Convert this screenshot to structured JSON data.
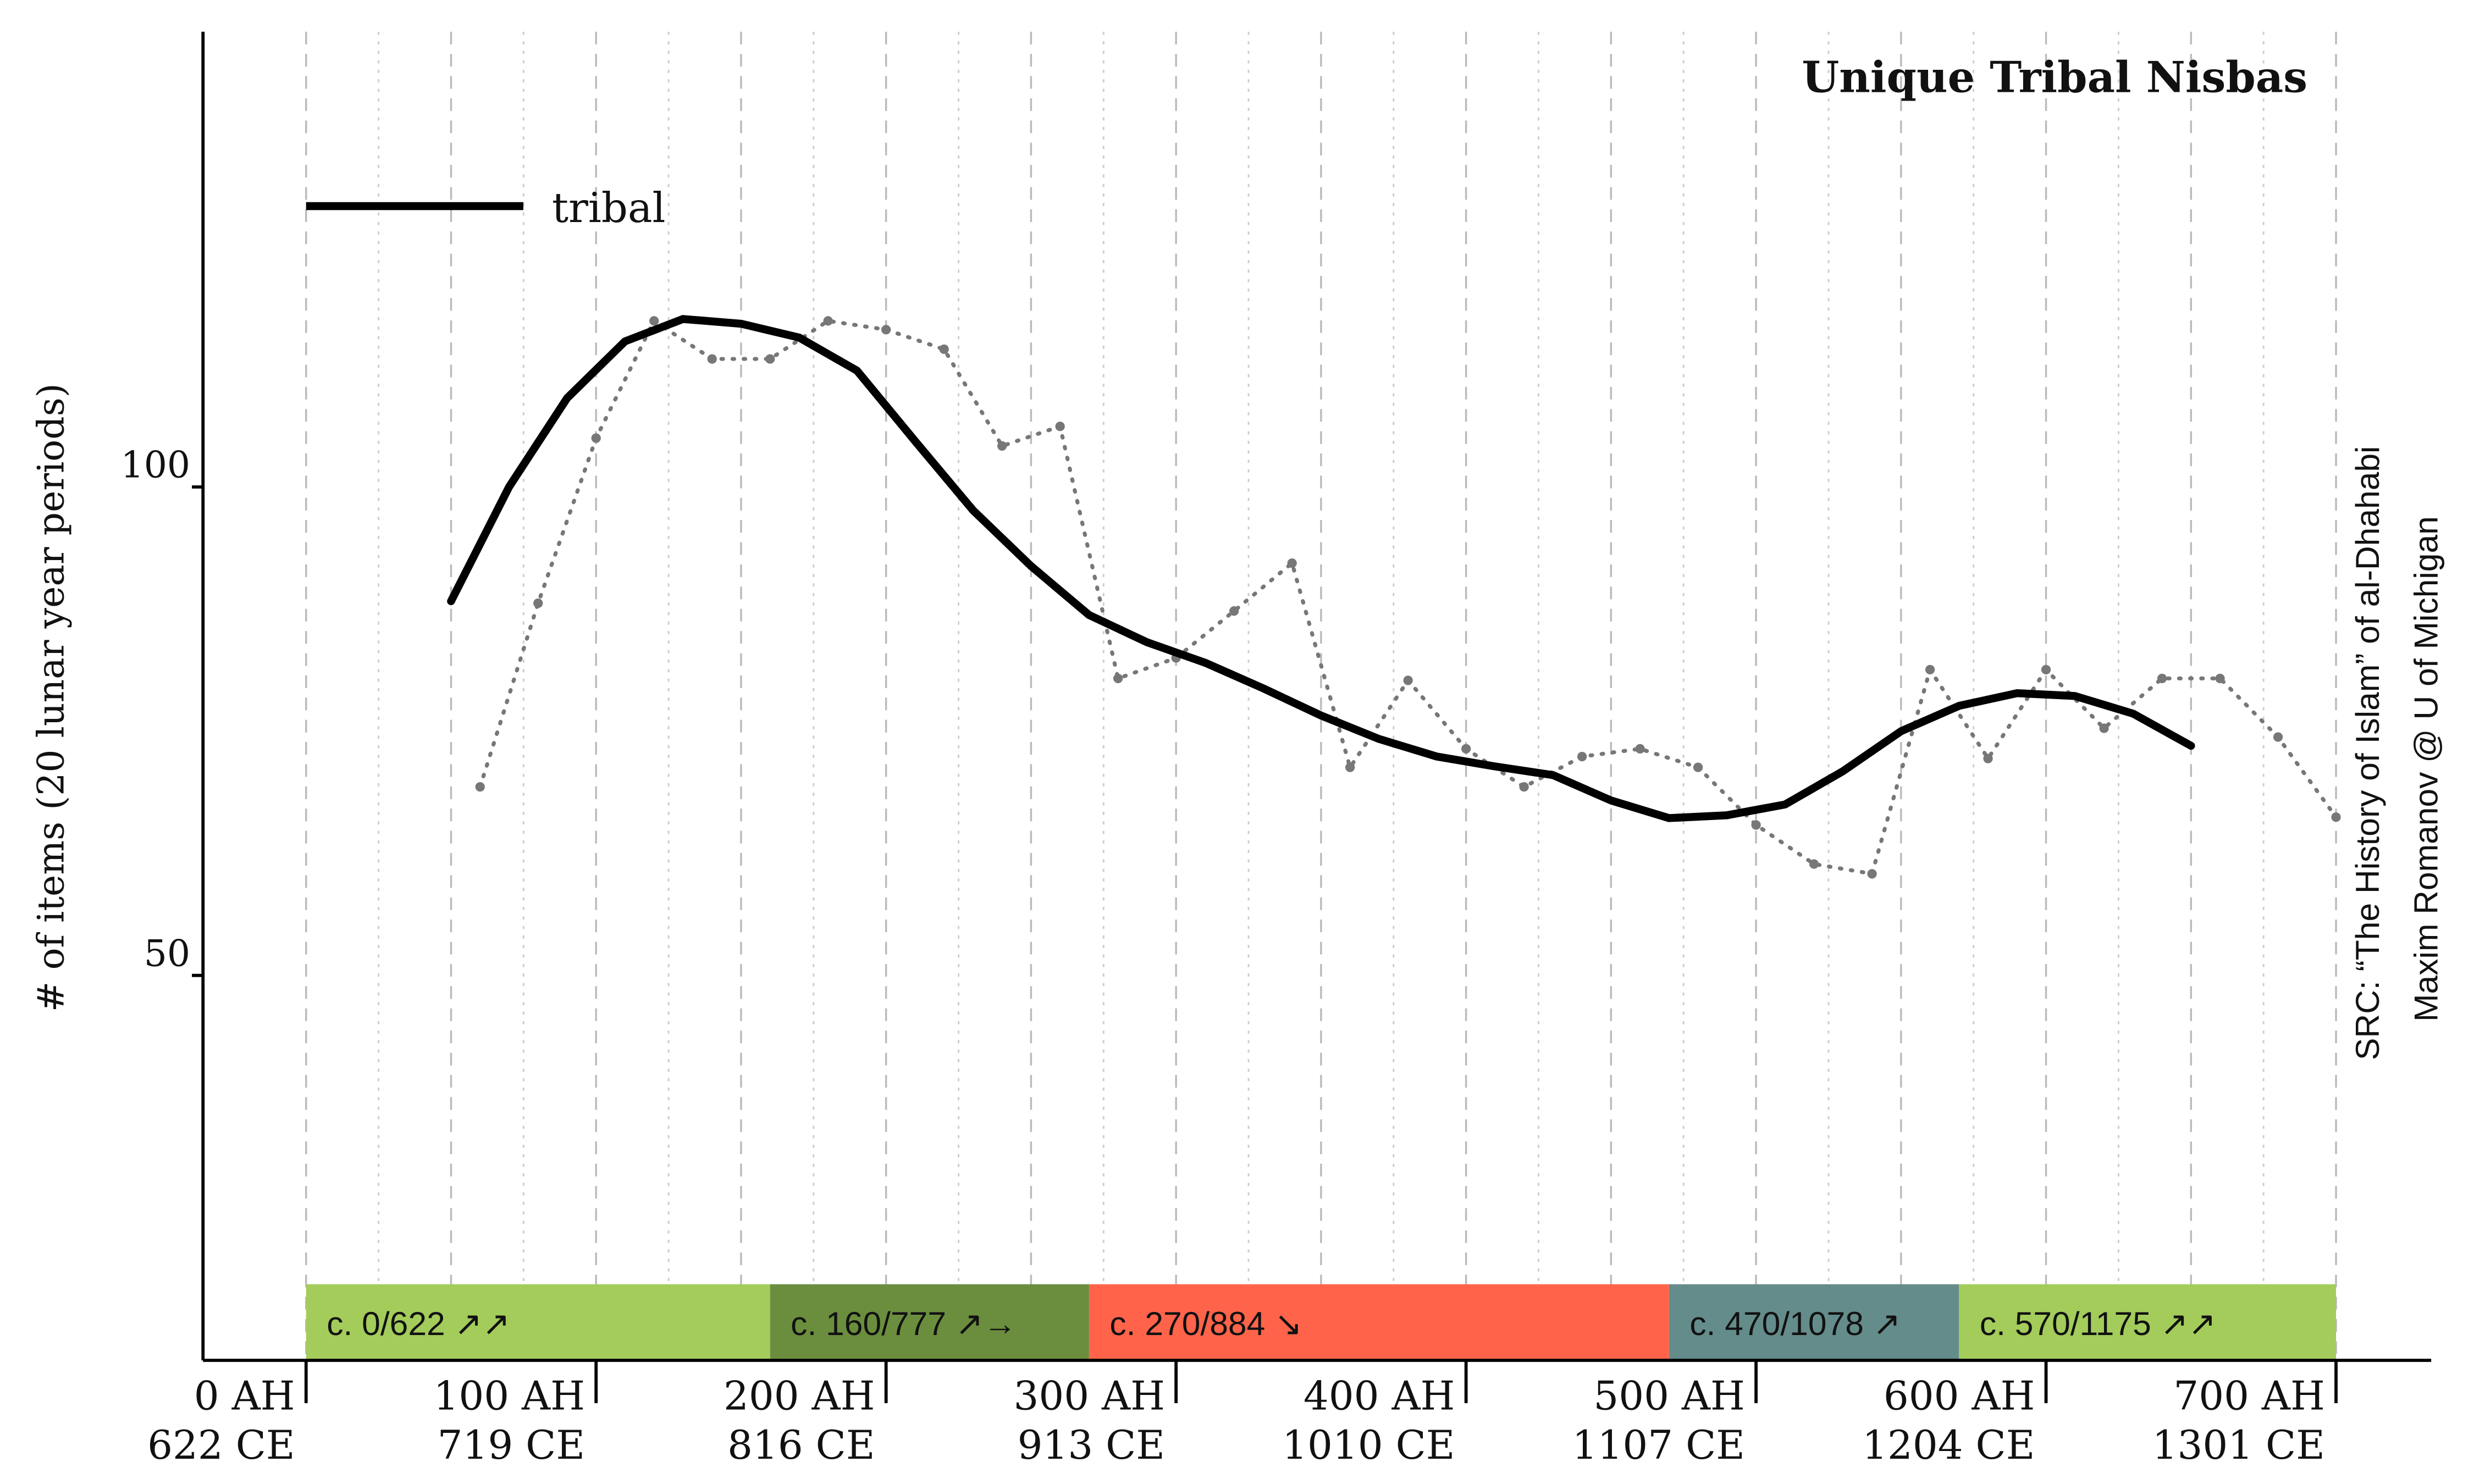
{
  "chart_data": {
    "type": "line",
    "title": "Unique Tribal Nisbas",
    "ylabel": "# of items (20 lunar year periods)",
    "source": [
      "SRC: “The History of Islam” of al-Dhahabi",
      "Maxim Romanov @ U of Michigan"
    ],
    "xlim": [
      0,
      700
    ],
    "ylim": [
      10.6,
      146.6
    ],
    "yticks": [
      50,
      100
    ],
    "xticks": [
      {
        "value": 0,
        "label": "0 AH"
      },
      {
        "value": 100,
        "label": "100 AH"
      },
      {
        "value": 200,
        "label": "200 AH"
      },
      {
        "value": 300,
        "label": "300 AH"
      },
      {
        "value": 400,
        "label": "400 AH"
      },
      {
        "value": 500,
        "label": "500 AH"
      },
      {
        "value": 600,
        "label": "600 AH"
      },
      {
        "value": 700,
        "label": "700 AH"
      }
    ],
    "xtick_labels_ce": [
      "622 CE",
      "719 CE",
      "816 CE",
      "913 CE",
      "1010 CE",
      "1107 CE",
      "1204 CE",
      "1301 CE"
    ],
    "xgrid": [
      0,
      25,
      50,
      75,
      100,
      125,
      150,
      175,
      200,
      225,
      250,
      275,
      300,
      325,
      350,
      375,
      400,
      425,
      450,
      475,
      500,
      525,
      550,
      575,
      600,
      625,
      650,
      675,
      700
    ],
    "series": [
      {
        "name": "tribal",
        "color": "#000000",
        "style": "solid",
        "x": [
          50,
          70,
          90,
          110,
          130,
          150,
          170,
          190,
          210,
          230,
          250,
          270,
          290,
          310,
          330,
          350,
          370,
          390,
          410,
          430,
          450,
          470,
          490,
          510,
          530,
          550,
          570,
          590,
          610,
          630,
          650
        ],
        "values": [
          88.3,
          100,
          109.1,
          114.9,
          117.2,
          116.7,
          115.3,
          111.9,
          104.7,
          97.6,
          91.9,
          86.9,
          84.1,
          82.0,
          79.4,
          76.6,
          74.2,
          72.4,
          71.4,
          70.5,
          67.9,
          66.1,
          66.4,
          67.5,
          70.9,
          75.0,
          77.6,
          78.9,
          78.6,
          76.8,
          73.5
        ]
      },
      {
        "color": "#777777",
        "style": "dotted",
        "x": [
          60,
          80,
          100,
          120,
          140,
          160,
          180,
          200,
          220,
          240,
          260,
          280,
          300,
          320,
          340,
          360,
          380,
          400,
          420,
          440,
          460,
          480,
          500,
          520,
          540,
          560,
          580,
          600,
          620,
          640,
          660,
          680,
          700
        ],
        "values": [
          69.3,
          88.1,
          105.0,
          117.0,
          113.1,
          113.1,
          117.0,
          116.1,
          114.1,
          104.2,
          106.2,
          80.4,
          82.5,
          87.3,
          92.2,
          71.3,
          80.2,
          73.2,
          69.3,
          72.4,
          73.2,
          71.3,
          65.4,
          61.4,
          60.4,
          81.3,
          72.2,
          81.3,
          75.3,
          80.4,
          80.4,
          74.4,
          66.2
        ]
      }
    ],
    "periods": [
      {
        "label": "c. 0/622 ↗↗",
        "start": 0,
        "end": 160,
        "color": "#a3cc5b"
      },
      {
        "label": "c. 160/777 ↗→",
        "start": 160,
        "end": 270,
        "color": "#6b8e3e"
      },
      {
        "label": "c. 270/884 ↘",
        "start": 270,
        "end": 470,
        "color": "#ff644a"
      },
      {
        "label": "c. 470/1078 ↗",
        "start": 470,
        "end": 570,
        "color": "#648c8a"
      },
      {
        "label": "c. 570/1175 ↗↗",
        "start": 570,
        "end": 700,
        "color": "#a3cc5b"
      }
    ]
  }
}
